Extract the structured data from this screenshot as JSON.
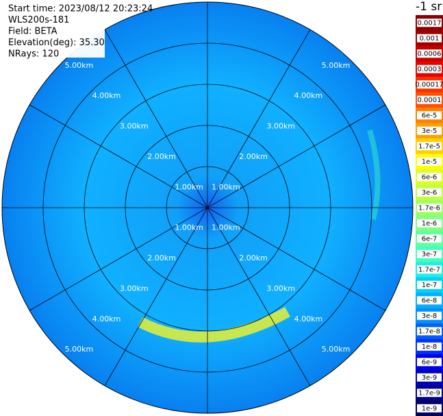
{
  "header": {
    "lines": [
      "Start time: 2023/08/12 20:23:24",
      "WLS200s-181",
      "Field: BETA",
      "Elevation(deg): 35.30",
      "NRays: 120"
    ]
  },
  "range_rings": [
    "1.00km",
    "2.00km",
    "3.00km",
    "4.00km",
    "5.00km"
  ],
  "colorbar": {
    "title": "-1 sr",
    "labels": [
      "0.0017",
      "0.001",
      "0.0006",
      "0.0003",
      "0.00017",
      "0.0001",
      "6e-5",
      "3e-5",
      "1.7e-5",
      "1e-5",
      "6e-6",
      "3e-6",
      "1.7e-6",
      "1e-6",
      "6e-7",
      "3e-7",
      "1.7e-7",
      "1e-7",
      "6e-8",
      "3e-8",
      "1.7e-8",
      "1e-8",
      "6e-9",
      "3e-9",
      "1.7e-9",
      "1e-9"
    ],
    "colors": [
      "#8b0000",
      "#a00000",
      "#c80000",
      "#ee0000",
      "#ff3000",
      "#ff5000",
      "#ff8000",
      "#ffa000",
      "#ffd000",
      "#ffff00",
      "#e0ff20",
      "#c0ff40",
      "#a0ff60",
      "#80ff80",
      "#60ffa0",
      "#40ffc0",
      "#20f0e0",
      "#00d0ff",
      "#00b0ff",
      "#0090ff",
      "#0060ff",
      "#0030ff",
      "#0000ee",
      "#0000c0",
      "#000090",
      "#000060"
    ]
  }
}
